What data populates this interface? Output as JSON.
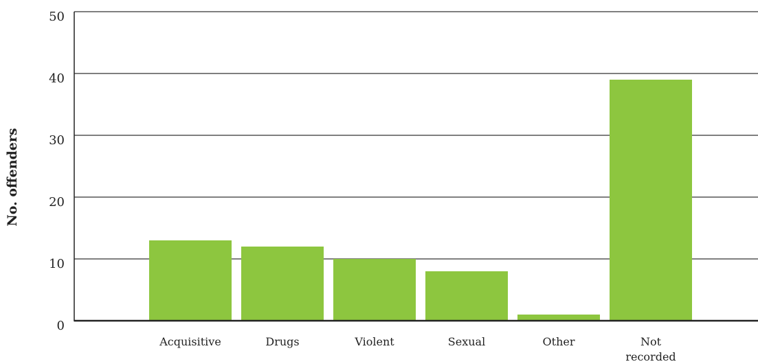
{
  "chart_data": {
    "type": "bar",
    "ylabel": "No. offenders",
    "xlabel": "",
    "ylim": [
      0,
      50
    ],
    "yticks": [
      0,
      10,
      20,
      30,
      40,
      50
    ],
    "grid": true,
    "categories": [
      "Acquisitive",
      "Drugs",
      "Violent",
      "Sexual",
      "Other",
      "Not recorded"
    ],
    "category_lines": [
      [
        "Acquisitive"
      ],
      [
        "Drugs"
      ],
      [
        "Violent"
      ],
      [
        "Sexual"
      ],
      [
        "Other"
      ],
      [
        "Not",
        "recorded"
      ]
    ],
    "values": [
      13,
      12,
      10,
      8,
      1,
      39
    ],
    "colors": {
      "bar": "#8dc63f",
      "grid": "#333333",
      "axis": "#222222"
    }
  }
}
